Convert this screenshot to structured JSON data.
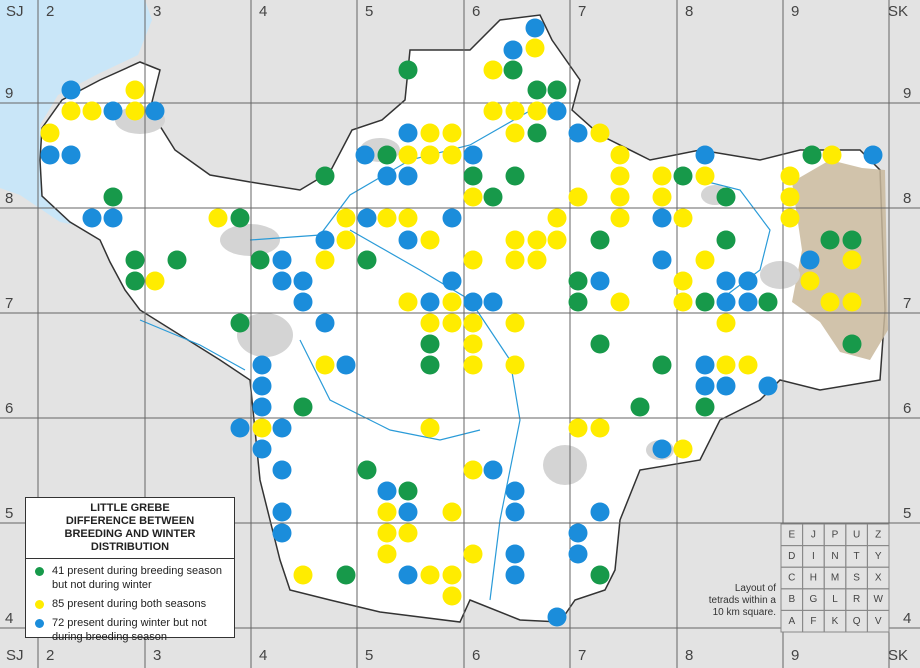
{
  "grid": {
    "corner_left": "SJ",
    "corner_right": "SK",
    "columns": [
      "2",
      "3",
      "4",
      "5",
      "6",
      "7",
      "8",
      "9"
    ],
    "rows": [
      "9",
      "8",
      "7",
      "6",
      "5",
      "4"
    ]
  },
  "legend": {
    "title": [
      "LITTLE GREBE",
      "DIFFERENCE BETWEEN BREEDING AND WINTER DISTRIBUTION"
    ],
    "items": [
      {
        "color": "#17994a",
        "label": "41 present during breeding season but not during winter"
      },
      {
        "color": "#ffec00",
        "label": "85 present during both seasons"
      },
      {
        "color": "#1b8ddb",
        "label": "72 present during winter but not during breeding season"
      }
    ]
  },
  "tetrads": {
    "rows": [
      [
        "E",
        "J",
        "P",
        "U",
        "Z"
      ],
      [
        "D",
        "I",
        "N",
        "T",
        "Y"
      ],
      [
        "C",
        "H",
        "M",
        "S",
        "X"
      ],
      [
        "B",
        "G",
        "L",
        "R",
        "W"
      ],
      [
        "A",
        "F",
        "K",
        "Q",
        "V"
      ]
    ],
    "caption": [
      "Layout of",
      "tetrads within a",
      "10 km square."
    ]
  }
}
